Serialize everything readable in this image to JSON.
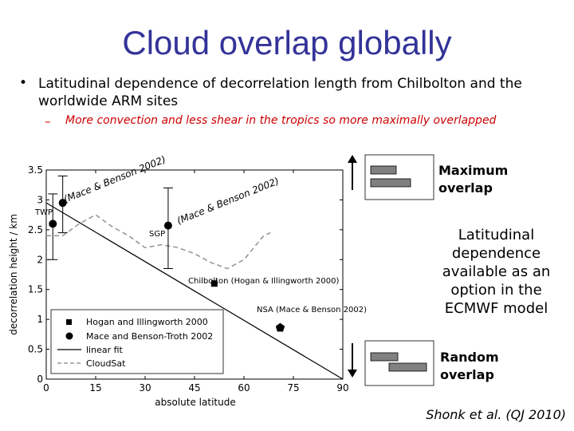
{
  "slide": {
    "title": "Cloud overlap globally",
    "bullet_marker": "•",
    "bullet": "Latitudinal dependence of decorrelation length from Chilbolton and the worldwide ARM sites",
    "sub_marker": "–",
    "sub_bullet": "More convection and less shear in the tropics so more maximally overlapped",
    "side_note": "Latitudinal dependence available as an option in the ECMWF model",
    "max_overlap_label": "Maximum overlap",
    "random_overlap_label": "Random overlap",
    "citation": "Shonk et al. (QJ 2010)"
  },
  "chart_data": {
    "type": "scatter",
    "xlabel": "absolute latitude",
    "ylabel": "decorrelation height / km",
    "xlim": [
      0,
      90
    ],
    "ylim": [
      0,
      3.5
    ],
    "xticks": [
      "0",
      "15",
      "30",
      "45",
      "60",
      "75",
      "90"
    ],
    "yticks": [
      "0",
      "0.5",
      "1",
      "1.5",
      "2",
      "2.5",
      "3",
      "3.5"
    ],
    "colors": {
      "title": "#333399",
      "sub": "#cc0000",
      "cloudsat": "#999999",
      "arrow": "#000000",
      "box": "#808080"
    },
    "series": [
      {
        "name": "Hogan and Illingworth 2000",
        "marker": "square",
        "points": [
          {
            "x": 51,
            "y": 1.6,
            "err": [
              1.6,
              1.6
            ]
          }
        ]
      },
      {
        "name": "Mace and Benson-Troth 2002",
        "marker": "circle",
        "points": [
          {
            "x": 5,
            "y": 2.95,
            "err": [
              2.45,
              3.4
            ]
          },
          {
            "x": 2,
            "y": 2.6,
            "err": [
              2.0,
              3.1
            ]
          },
          {
            "x": 37,
            "y": 2.57,
            "err": [
              1.85,
              3.2
            ]
          },
          {
            "x": 71,
            "y": 0.86,
            "err": [
              0.86,
              0.86
            ]
          }
        ]
      },
      {
        "name": "linear fit",
        "style": "solid",
        "points": [
          {
            "x": 0,
            "y": 2.95
          },
          {
            "x": 90,
            "y": 0
          }
        ]
      },
      {
        "name": "CloudSat",
        "style": "dashed",
        "points": [
          {
            "x": 0,
            "y": 2.4
          },
          {
            "x": 5,
            "y": 2.4
          },
          {
            "x": 10,
            "y": 2.6
          },
          {
            "x": 15,
            "y": 2.75
          },
          {
            "x": 20,
            "y": 2.55
          },
          {
            "x": 25,
            "y": 2.4
          },
          {
            "x": 30,
            "y": 2.2
          },
          {
            "x": 35,
            "y": 2.25
          },
          {
            "x": 40,
            "y": 2.2
          },
          {
            "x": 45,
            "y": 2.1
          },
          {
            "x": 50,
            "y": 1.95
          },
          {
            "x": 55,
            "y": 1.85
          },
          {
            "x": 60,
            "y": 2.0
          },
          {
            "x": 63,
            "y": 2.2
          },
          {
            "x": 66,
            "y": 2.4
          },
          {
            "x": 68,
            "y": 2.45
          }
        ]
      }
    ],
    "annotations": [
      {
        "text": "TWP",
        "style": "plain"
      },
      {
        "text": "(Mace & Benson 2002)",
        "style": "rotated"
      },
      {
        "text": "SGP",
        "style": "plain"
      },
      {
        "text": "(Mace & Benson 2002)",
        "style": "rotated"
      },
      {
        "text": "Chilbolton (Hogan & Illingworth 2000)",
        "style": "plain"
      },
      {
        "text": "NSA (Mace & Benson 2002)",
        "style": "plain"
      }
    ],
    "legend": {
      "placement": "lower-left",
      "entries": [
        "Hogan and Illingworth 2000",
        "Mace and Benson-Troth 2002",
        "linear fit",
        "CloudSat"
      ]
    }
  }
}
